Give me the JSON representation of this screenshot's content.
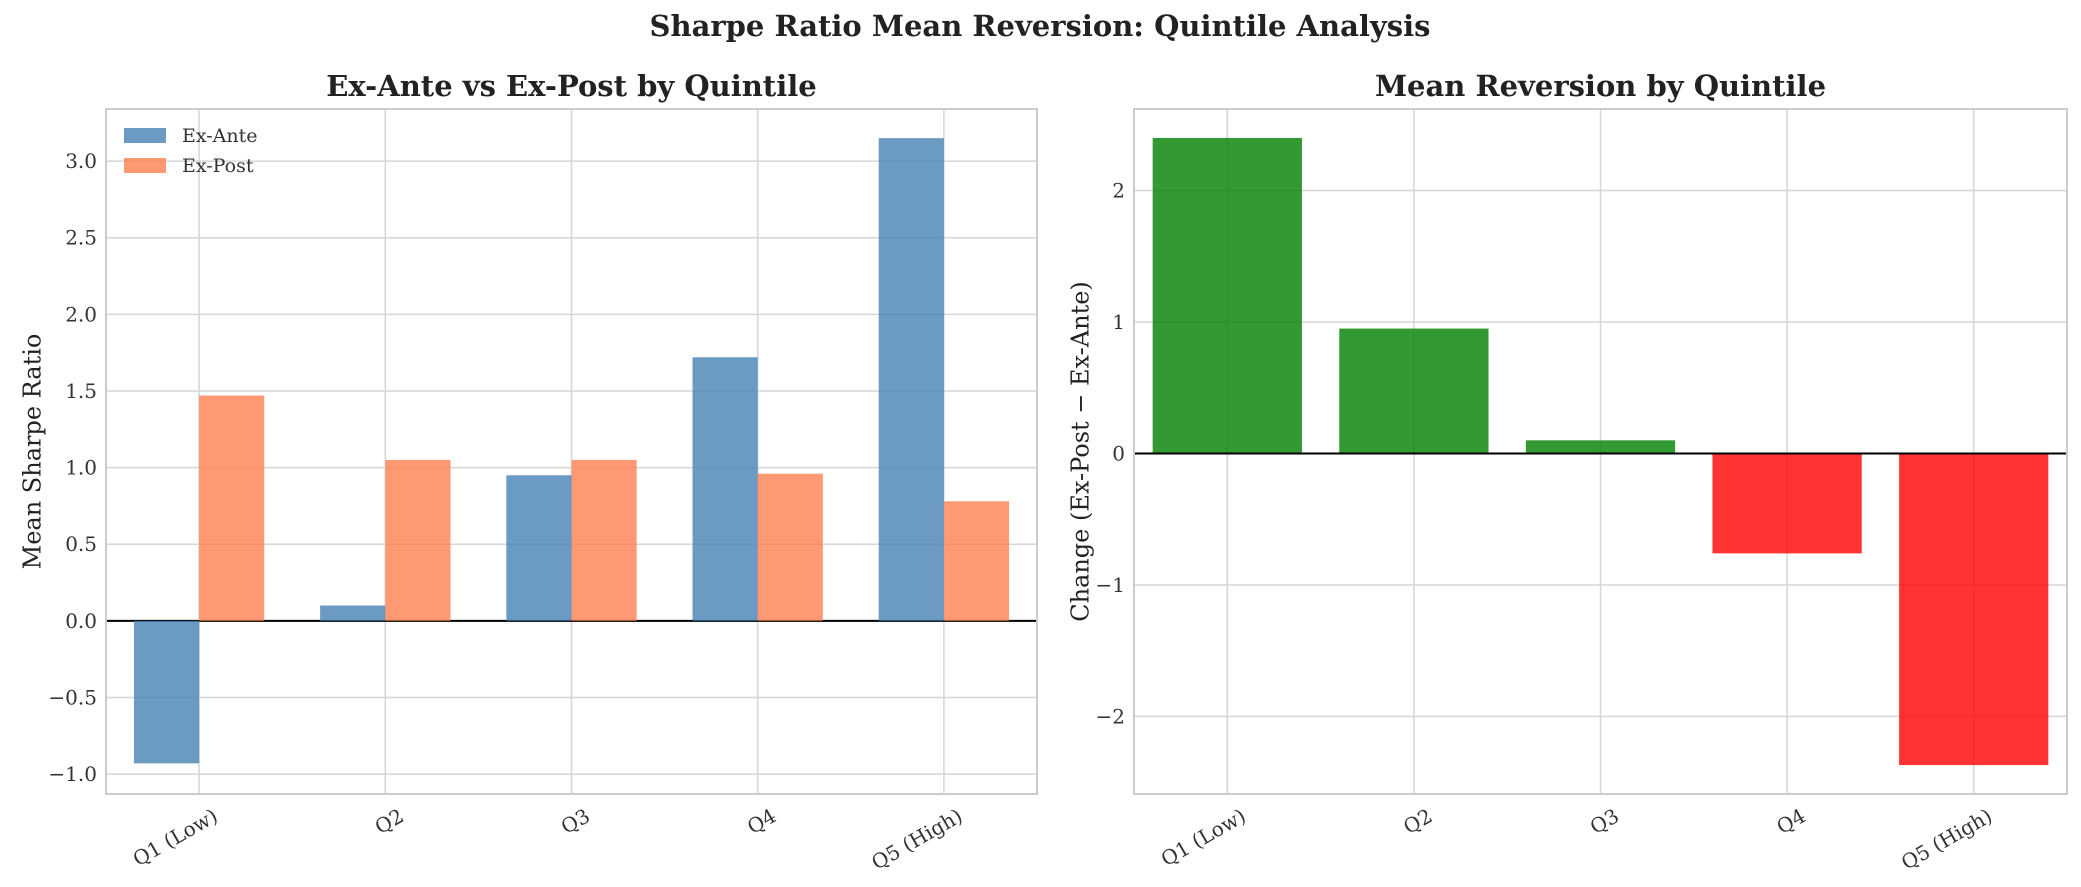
{
  "figure": {
    "title": "Sharpe Ratio Mean Reversion: Quintile Analysis"
  },
  "colors": {
    "ex_ante": "#4682b4",
    "ex_post": "#ff7f50",
    "positive": "#008000",
    "negative": "#ff0000"
  },
  "chart_data": [
    {
      "type": "bar",
      "title": "Ex-Ante vs Ex-Post by Quintile",
      "xlabel": "",
      "ylabel": "Mean Sharpe Ratio",
      "categories": [
        "Q1 (Low)",
        "Q2",
        "Q3",
        "Q4",
        "Q5 (High)"
      ],
      "series": [
        {
          "name": "Ex-Ante",
          "values": [
            -0.93,
            0.1,
            0.95,
            1.72,
            3.15
          ]
        },
        {
          "name": "Ex-Post",
          "values": [
            1.47,
            1.05,
            1.05,
            0.96,
            0.78
          ]
        }
      ],
      "ylim": [
        -1.13,
        3.34
      ],
      "yticks": [
        -1.0,
        -0.5,
        0.0,
        0.5,
        1.0,
        1.5,
        2.0,
        2.5,
        3.0
      ],
      "ytick_labels": [
        "−1.0",
        "−0.5",
        "0.0",
        "0.5",
        "1.0",
        "1.5",
        "2.0",
        "2.5",
        "3.0"
      ],
      "grid": true,
      "legend": "top-left"
    },
    {
      "type": "bar",
      "title": "Mean Reversion by Quintile",
      "xlabel": "",
      "ylabel": "Change (Ex-Post − Ex-Ante)",
      "categories": [
        "Q1 (Low)",
        "Q2",
        "Q3",
        "Q4",
        "Q5 (High)"
      ],
      "values": [
        2.4,
        0.95,
        0.1,
        -0.76,
        -2.37
      ],
      "ylim": [
        -2.59,
        2.62
      ],
      "yticks": [
        -2,
        -1,
        0,
        1,
        2
      ],
      "ytick_labels": [
        "−2",
        "−1",
        "0",
        "1",
        "2"
      ],
      "grid": true,
      "legend": "none"
    }
  ]
}
